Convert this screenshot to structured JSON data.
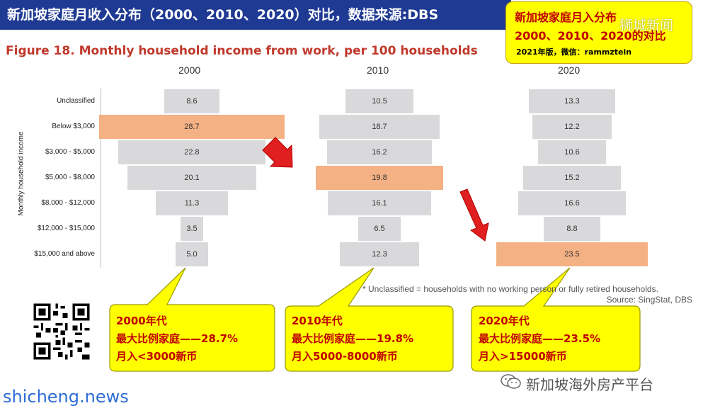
{
  "banner": {
    "title": "新加坡家庭月收入分布（2000、2010、2020）对比，数据来源:DBS"
  },
  "note": {
    "line1": "新加坡家庭月入分布",
    "line2": "2000、2010、2020的对比",
    "line3": "2021年版，微信：rammztein"
  },
  "watermark_top": "狮城新闻",
  "chart_data": {
    "type": "bar",
    "title": "Figure 18. Monthly household income from work, per 100 households",
    "ylabel": "Monthly household income",
    "categories": [
      "Unclassified",
      "Below $3,000",
      "$3,000 - $5,000",
      "$5,000 - $8,000",
      "$8,000 - $12,000",
      "$12,000 - $15,000",
      "$15,000 and above"
    ],
    "series": [
      {
        "name": "2000",
        "values": [
          8.6,
          28.7,
          22.8,
          20.1,
          11.3,
          3.5,
          5.0
        ],
        "labels": [
          "8.6",
          "28.7",
          "22.8",
          "20.1",
          "11.3",
          "3.5",
          "5.0"
        ],
        "highlight_index": 1
      },
      {
        "name": "2010",
        "values": [
          10.5,
          18.7,
          16.2,
          19.8,
          16.1,
          6.5,
          12.3
        ],
        "labels": [
          "10.5",
          "18.7",
          "16.2",
          "19.8",
          "16.1",
          "6.5",
          "12.3"
        ],
        "highlight_index": 3
      },
      {
        "name": "2020",
        "values": [
          13.3,
          12.2,
          10.6,
          15.2,
          16.6,
          8.8,
          23.5
        ],
        "labels": [
          "13.3",
          "12.2",
          "10.6",
          "15.2",
          "16.6",
          "8.8",
          "23.5"
        ],
        "highlight_index": 6
      }
    ],
    "footnote": "* Unclassified = households with no working person or fully retired households.",
    "source": "Source: SingStat, DBS"
  },
  "callouts": [
    {
      "line1": "2000年代",
      "line2": "最大比例家庭——28.7%",
      "line3": "月入<3000新币"
    },
    {
      "line1": "2010年代",
      "line2": "最大比例家庭——19.8%",
      "line3": "月入5000-8000新币"
    },
    {
      "line1": "2020年代",
      "line2": "最大比例家庭——23.5%",
      "line3": "月入>15000新币"
    }
  ],
  "site": "shicheng.news",
  "wechat_account": "新加坡海外房产平台",
  "colors": {
    "bar": "#d9d9db",
    "highlight": "#f4b183",
    "arrow": "#e02020",
    "banner": "#1f3a93",
    "callout": "#ffff00",
    "title": "#c0392b"
  }
}
